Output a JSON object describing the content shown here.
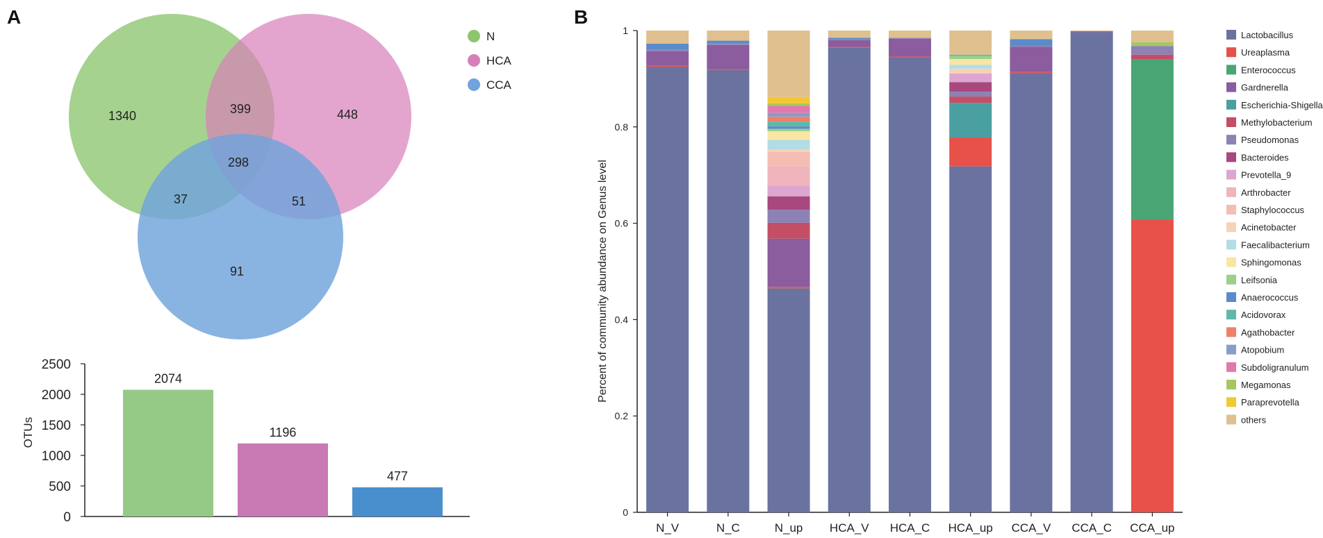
{
  "panels": {
    "a_label": "A",
    "b_label": "B"
  },
  "chart_data": [
    {
      "type": "venn",
      "sets": [
        {
          "name": "N",
          "color": "#8cc56e"
        },
        {
          "name": "HCA",
          "color": "#d77fb8"
        },
        {
          "name": "CCA",
          "color": "#6fa4dc"
        }
      ],
      "regions": {
        "N_only": 1340,
        "HCA_only": 448,
        "CCA_only": 91,
        "N_HCA": 399,
        "N_CCA": 37,
        "HCA_CCA": 51,
        "all": 298
      }
    },
    {
      "type": "bar",
      "categories": [
        "N",
        "HCA",
        "CCA"
      ],
      "values": [
        2074,
        1196,
        477
      ],
      "colors": [
        "#95c986",
        "#c97ab4",
        "#4a8fcd"
      ],
      "ylabel": "OTUs",
      "ylim": [
        0,
        2500
      ],
      "yticks": [
        0,
        500,
        1000,
        1500,
        2000,
        2500
      ]
    },
    {
      "type": "stacked_bar",
      "ylabel": "Percent of community abundance on Genus level",
      "ylim": [
        0,
        1
      ],
      "yticks": [
        0,
        0.2,
        0.4,
        0.6,
        0.8,
        1
      ],
      "ytick_labels": [
        "0",
        "0.2",
        "0.4",
        "0.6",
        "0.8",
        "1"
      ],
      "categories": [
        "N_V",
        "N_C",
        "N_up",
        "HCA_V",
        "HCA_C",
        "HCA_up",
        "CCA_V",
        "CCA_C",
        "CCA_up"
      ],
      "series": [
        {
          "name": "Lactobacillus",
          "color": "#6a72a0",
          "values": [
            0.925,
            0.918,
            0.465,
            0.965,
            0.945,
            0.718,
            0.912,
            0.997,
            0
          ]
        },
        {
          "name": "Ureaplasma",
          "color": "#e8504a",
          "values": [
            0.002,
            0.002,
            0.003,
            0.001,
            0.001,
            0.06,
            0.002,
            0.002,
            0.608
          ]
        },
        {
          "name": "Enterococcus",
          "color": "#4aa574",
          "values": [
            0,
            0,
            0,
            0,
            0,
            0,
            0,
            0,
            0.332
          ]
        },
        {
          "name": "Gardnerella",
          "color": "#8b5c9e",
          "values": [
            0.03,
            0.05,
            0.1,
            0.014,
            0.037,
            0,
            0.052,
            0,
            0
          ]
        },
        {
          "name": "Escherichia-Shigella",
          "color": "#4a9fa0",
          "values": [
            0,
            0,
            0,
            0,
            0,
            0.072,
            0,
            0,
            0
          ]
        },
        {
          "name": "Methylobacterium",
          "color": "#c44e66",
          "values": [
            0,
            0,
            0.033,
            0,
            0,
            0.013,
            0,
            0,
            0.01
          ]
        },
        {
          "name": "Pseudomonas",
          "color": "#8c82b4",
          "values": [
            0.004,
            0.003,
            0.027,
            0.002,
            0.002,
            0.01,
            0.003,
            0,
            0.018
          ]
        },
        {
          "name": "Bacteroides",
          "color": "#a8487e",
          "values": [
            0,
            0,
            0.028,
            0,
            0,
            0.02,
            0,
            0,
            0
          ]
        },
        {
          "name": "Prevotella_9",
          "color": "#dda6d0",
          "values": [
            0,
            0,
            0.022,
            0,
            0,
            0.018,
            0,
            0,
            0
          ]
        },
        {
          "name": "Arthrobacter",
          "color": "#f0b4bc",
          "values": [
            0,
            0,
            0.04,
            0,
            0,
            0,
            0,
            0,
            0
          ]
        },
        {
          "name": "Staphylococcus",
          "color": "#f3bdb4",
          "values": [
            0,
            0,
            0.03,
            0,
            0,
            0,
            0,
            0,
            0
          ]
        },
        {
          "name": "Acinetobacter",
          "color": "#f6d3b4",
          "values": [
            0,
            0,
            0.005,
            0,
            0,
            0.01,
            0,
            0,
            0
          ]
        },
        {
          "name": "Faecalibacterium",
          "color": "#b2dce6",
          "values": [
            0,
            0,
            0.02,
            0,
            0,
            0.008,
            0,
            0,
            0
          ]
        },
        {
          "name": "Sphingomonas",
          "color": "#f8e6a4",
          "values": [
            0,
            0,
            0.018,
            0,
            0,
            0.012,
            0,
            0,
            0
          ]
        },
        {
          "name": "Leifsonia",
          "color": "#9ccf8a",
          "values": [
            0,
            0,
            0.005,
            0,
            0,
            0.006,
            0,
            0,
            0
          ]
        },
        {
          "name": "Anaerococcus",
          "color": "#5b8bcc",
          "values": [
            0.012,
            0.006,
            0.005,
            0.003,
            0,
            0,
            0.013,
            0,
            0
          ]
        },
        {
          "name": "Acidovorax",
          "color": "#5fb8a8",
          "values": [
            0,
            0,
            0.01,
            0,
            0,
            0.003,
            0,
            0,
            0
          ]
        },
        {
          "name": "Agathobacter",
          "color": "#ee8066",
          "values": [
            0,
            0,
            0.01,
            0,
            0,
            0,
            0,
            0,
            0
          ]
        },
        {
          "name": "Atopobium",
          "color": "#8a9cc8",
          "values": [
            0,
            0,
            0.008,
            0,
            0,
            0,
            0,
            0,
            0
          ]
        },
        {
          "name": "Subdoligranulum",
          "color": "#e07aac",
          "values": [
            0,
            0,
            0.015,
            0,
            0,
            0,
            0,
            0,
            0
          ]
        },
        {
          "name": "Megamonas",
          "color": "#a8c660",
          "values": [
            0,
            0,
            0.005,
            0,
            0,
            0,
            0,
            0,
            0.008
          ]
        },
        {
          "name": "Paraprevotella",
          "color": "#f2c932",
          "values": [
            0,
            0,
            0.013,
            0,
            0,
            0,
            0,
            0,
            0
          ]
        },
        {
          "name": "others",
          "color": "#e0c08e",
          "values": [
            0.027,
            0.021,
            0.138,
            0.015,
            0.015,
            0.05,
            0.018,
            0.001,
            0.024
          ]
        }
      ]
    }
  ]
}
